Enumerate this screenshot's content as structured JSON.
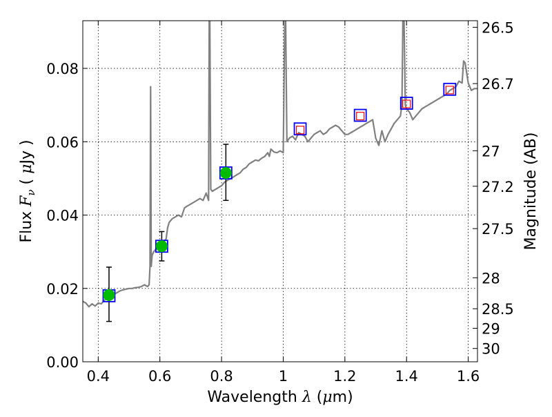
{
  "chart_data": {
    "type": "line",
    "xlabel_main": "Wavelength",
    "xlabel_symbol": "λ",
    "xlabel_unit_open": " (",
    "xlabel_unit_mu": "μ",
    "xlabel_unit_rest": "m)",
    "ylabel_main": "Flux",
    "ylabel_symbol": "F",
    "ylabel_sub": "ν",
    "ylabel_unit_open": " ( ",
    "ylabel_unit_mu": "μ",
    "ylabel_unit_rest": "Jy )",
    "ylabel_right": "Magnitude (AB)",
    "xlim": [
      0.35,
      1.63
    ],
    "ylim": [
      0.0,
      0.093
    ],
    "x_ticks": [
      0.4,
      0.6,
      0.8,
      1.0,
      1.2,
      1.4,
      1.6
    ],
    "x_tick_labels": [
      "0.4",
      "0.6",
      "0.8",
      "1",
      "1.2",
      "1.4",
      "1.6"
    ],
    "y_ticks": [
      0.0,
      0.02,
      0.04,
      0.06,
      0.08
    ],
    "y_tick_labels": [
      "0.00",
      "0.02",
      "0.04",
      "0.06",
      "0.08"
    ],
    "right_ticks": [
      {
        "label": "26.5",
        "mag": 26.5
      },
      {
        "label": "26.7",
        "mag": 26.7
      },
      {
        "label": "27",
        "mag": 27.0
      },
      {
        "label": "27.2",
        "mag": 27.2
      },
      {
        "label": "27.5",
        "mag": 27.5
      },
      {
        "label": "28",
        "mag": 28.0
      },
      {
        "label": "28.5",
        "mag": 28.5
      },
      {
        "label": "29",
        "mag": 29.0
      },
      {
        "label": "30",
        "mag": 30.0
      }
    ],
    "grid": true,
    "colors": {
      "spectrum": "#808080",
      "observed_marker": "#00bb00",
      "model_box": "#0000ff",
      "predicted_box": "#ff0000",
      "errorbar": "#000000"
    },
    "series": [
      {
        "kind": "spectrum",
        "points": [
          [
            0.35,
            0.0165
          ],
          [
            0.36,
            0.016
          ],
          [
            0.37,
            0.015
          ],
          [
            0.38,
            0.0158
          ],
          [
            0.39,
            0.0152
          ],
          [
            0.4,
            0.016
          ],
          [
            0.41,
            0.0158
          ],
          [
            0.42,
            0.0168
          ],
          [
            0.43,
            0.0174
          ],
          [
            0.44,
            0.0178
          ],
          [
            0.45,
            0.0183
          ],
          [
            0.46,
            0.0188
          ],
          [
            0.47,
            0.0193
          ],
          [
            0.48,
            0.0196
          ],
          [
            0.49,
            0.0198
          ],
          [
            0.5,
            0.02
          ],
          [
            0.51,
            0.02
          ],
          [
            0.52,
            0.0202
          ],
          [
            0.53,
            0.0203
          ],
          [
            0.54,
            0.0205
          ],
          [
            0.55,
            0.021
          ],
          [
            0.56,
            0.0205
          ],
          [
            0.565,
            0.021
          ],
          [
            0.568,
            0.026
          ],
          [
            0.57,
            0.075
          ],
          [
            0.572,
            0.026
          ],
          [
            0.575,
            0.029
          ],
          [
            0.58,
            0.03
          ],
          [
            0.59,
            0.031
          ],
          [
            0.6,
            0.0318
          ],
          [
            0.61,
            0.0325
          ],
          [
            0.615,
            0.033
          ],
          [
            0.62,
            0.0335
          ],
          [
            0.625,
            0.0365
          ],
          [
            0.63,
            0.038
          ],
          [
            0.64,
            0.039
          ],
          [
            0.65,
            0.0395
          ],
          [
            0.66,
            0.04
          ],
          [
            0.67,
            0.0395
          ],
          [
            0.68,
            0.042
          ],
          [
            0.69,
            0.0425
          ],
          [
            0.7,
            0.043
          ],
          [
            0.71,
            0.0435
          ],
          [
            0.72,
            0.044
          ],
          [
            0.73,
            0.0445
          ],
          [
            0.74,
            0.044
          ],
          [
            0.75,
            0.046
          ],
          [
            0.758,
            0.044
          ],
          [
            0.76,
            0.093
          ],
          [
            0.762,
            0.093
          ],
          [
            0.765,
            0.047
          ],
          [
            0.77,
            0.0465
          ],
          [
            0.78,
            0.047
          ],
          [
            0.79,
            0.0475
          ],
          [
            0.8,
            0.048
          ],
          [
            0.81,
            0.049
          ],
          [
            0.82,
            0.0495
          ],
          [
            0.83,
            0.05
          ],
          [
            0.84,
            0.0505
          ],
          [
            0.85,
            0.051
          ],
          [
            0.86,
            0.0515
          ],
          [
            0.87,
            0.0525
          ],
          [
            0.88,
            0.053
          ],
          [
            0.89,
            0.054
          ],
          [
            0.9,
            0.0545
          ],
          [
            0.91,
            0.055
          ],
          [
            0.92,
            0.0548
          ],
          [
            0.93,
            0.0555
          ],
          [
            0.94,
            0.056
          ],
          [
            0.95,
            0.057
          ],
          [
            0.955,
            0.056
          ],
          [
            0.96,
            0.058
          ],
          [
            0.97,
            0.0572
          ],
          [
            0.98,
            0.057
          ],
          [
            0.99,
            0.0575
          ],
          [
            1.0,
            0.057
          ],
          [
            1.005,
            0.093
          ],
          [
            1.008,
            0.093
          ],
          [
            1.012,
            0.06
          ],
          [
            1.02,
            0.061
          ],
          [
            1.03,
            0.0615
          ],
          [
            1.04,
            0.0605
          ],
          [
            1.05,
            0.0625
          ],
          [
            1.06,
            0.062
          ],
          [
            1.07,
            0.0615
          ],
          [
            1.08,
            0.06
          ],
          [
            1.09,
            0.061
          ],
          [
            1.1,
            0.062
          ],
          [
            1.11,
            0.0625
          ],
          [
            1.12,
            0.063
          ],
          [
            1.13,
            0.062
          ],
          [
            1.14,
            0.0625
          ],
          [
            1.15,
            0.0635
          ],
          [
            1.16,
            0.064
          ],
          [
            1.17,
            0.0645
          ],
          [
            1.18,
            0.064
          ],
          [
            1.19,
            0.063
          ],
          [
            1.2,
            0.062
          ],
          [
            1.21,
            0.062
          ],
          [
            1.22,
            0.0625
          ],
          [
            1.23,
            0.063
          ],
          [
            1.24,
            0.0635
          ],
          [
            1.25,
            0.064
          ],
          [
            1.26,
            0.0645
          ],
          [
            1.27,
            0.065
          ],
          [
            1.28,
            0.0655
          ],
          [
            1.29,
            0.066
          ],
          [
            1.3,
            0.061
          ],
          [
            1.31,
            0.059
          ],
          [
            1.32,
            0.063
          ],
          [
            1.33,
            0.06
          ],
          [
            1.34,
            0.062
          ],
          [
            1.35,
            0.0635
          ],
          [
            1.36,
            0.065
          ],
          [
            1.37,
            0.066
          ],
          [
            1.38,
            0.067
          ],
          [
            1.385,
            0.07
          ],
          [
            1.388,
            0.093
          ],
          [
            1.392,
            0.093
          ],
          [
            1.396,
            0.07
          ],
          [
            1.4,
            0.069
          ],
          [
            1.41,
            0.068
          ],
          [
            1.42,
            0.066
          ],
          [
            1.43,
            0.067
          ],
          [
            1.44,
            0.068
          ],
          [
            1.45,
            0.069
          ],
          [
            1.46,
            0.0695
          ],
          [
            1.47,
            0.07
          ],
          [
            1.48,
            0.0705
          ],
          [
            1.49,
            0.071
          ],
          [
            1.5,
            0.0715
          ],
          [
            1.51,
            0.072
          ],
          [
            1.52,
            0.0725
          ],
          [
            1.53,
            0.073
          ],
          [
            1.54,
            0.074
          ],
          [
            1.55,
            0.0745
          ],
          [
            1.56,
            0.075
          ],
          [
            1.57,
            0.0765
          ],
          [
            1.58,
            0.076
          ],
          [
            1.585,
            0.082
          ],
          [
            1.59,
            0.0815
          ],
          [
            1.6,
            0.076
          ],
          [
            1.61,
            0.074
          ],
          [
            1.62,
            0.0745
          ],
          [
            1.63,
            0.0745
          ]
        ]
      },
      {
        "kind": "model_photometry",
        "points": [
          [
            0.435,
            0.018
          ],
          [
            0.606,
            0.0315
          ],
          [
            0.814,
            0.0515
          ],
          [
            1.055,
            0.0635
          ],
          [
            1.25,
            0.0672
          ],
          [
            1.4,
            0.0705
          ],
          [
            1.54,
            0.0743
          ]
        ]
      },
      {
        "kind": "predicted_photometry",
        "points": [
          [
            1.055,
            0.0632
          ],
          [
            1.25,
            0.067
          ],
          [
            1.4,
            0.0703
          ],
          [
            1.54,
            0.0741
          ]
        ]
      },
      {
        "kind": "observed_photometry",
        "points": [
          {
            "x": 0.435,
            "y": 0.0182,
            "err_lo": 0.011,
            "err_hi": 0.0258
          },
          {
            "x": 0.606,
            "y": 0.0315,
            "err_lo": 0.0275,
            "err_hi": 0.0355
          },
          {
            "x": 0.814,
            "y": 0.0515,
            "err_lo": 0.044,
            "err_hi": 0.0593
          }
        ]
      }
    ]
  }
}
